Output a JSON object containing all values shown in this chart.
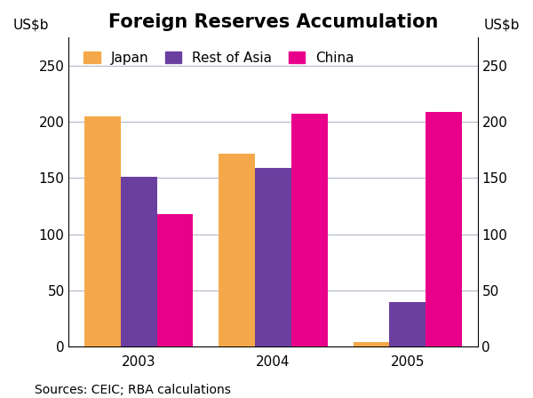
{
  "title": "Foreign Reserves Accumulation",
  "years": [
    "2003",
    "2004",
    "2005"
  ],
  "series": {
    "Japan": [
      205,
      172,
      4
    ],
    "Rest of Asia": [
      151,
      159,
      40
    ],
    "China": [
      118,
      207,
      209
    ]
  },
  "colors": {
    "Japan": "#F5A84A",
    "Rest of Asia": "#6B3FA0",
    "China": "#E8008A"
  },
  "ylabel_left": "US$b",
  "ylabel_right": "US$b",
  "ylim": [
    0,
    275
  ],
  "yticks": [
    0,
    50,
    100,
    150,
    200,
    250
  ],
  "source": "Sources: CEIC; RBA calculations",
  "bar_width": 0.27,
  "title_fontsize": 15,
  "tick_fontsize": 11,
  "label_fontsize": 11,
  "legend_fontsize": 11,
  "source_fontsize": 10,
  "background_color": "#ffffff",
  "grid_color": "#b0b8c8"
}
